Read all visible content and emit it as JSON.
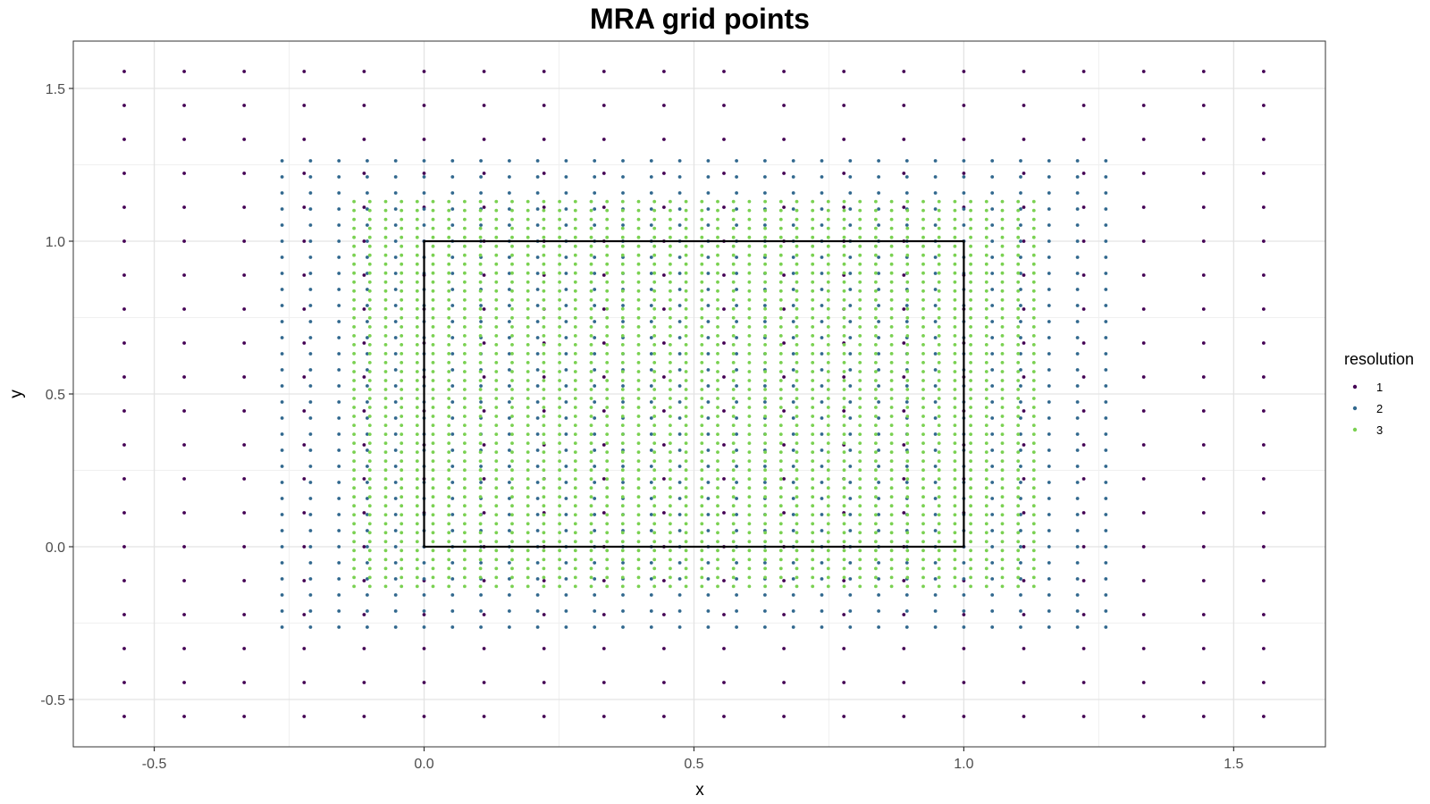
{
  "chart_data": {
    "type": "scatter",
    "title": "MRA grid points",
    "xlabel": "x",
    "ylabel": "y",
    "xlim": [
      -0.65,
      1.67
    ],
    "ylim": [
      -0.655,
      1.655
    ],
    "x_ticks": [
      -0.5,
      0.0,
      0.5,
      1.0,
      1.5
    ],
    "x_tick_labels": [
      "-0.5",
      "0.0",
      "0.5",
      "1.0",
      "1.5"
    ],
    "y_ticks": [
      -0.5,
      0.0,
      0.5,
      1.0,
      1.5
    ],
    "y_tick_labels": [
      "-0.5",
      "0.0",
      "0.5",
      "1.0",
      "1.5"
    ],
    "grid": true,
    "legend": {
      "title": "resolution",
      "placement": "right"
    },
    "domain_rectangle": {
      "x": [
        0,
        1
      ],
      "y": [
        0,
        1
      ],
      "color": "#000000"
    },
    "series": [
      {
        "name": "1",
        "color": "#440154",
        "x_range": [
          -0.5556,
          1.5556
        ],
        "y_range": [
          -0.5556,
          1.5556
        ],
        "count": [
          20,
          20
        ]
      },
      {
        "name": "2",
        "color": "#31688E",
        "x_range": [
          -0.2632,
          1.2632
        ],
        "y_range": [
          -0.2632,
          1.2632
        ],
        "count": [
          30,
          30
        ]
      },
      {
        "name": "3",
        "color": "#7AD151",
        "x_range": [
          -0.1299,
          1.1299
        ],
        "y_range": [
          -0.1299,
          1.1299
        ],
        "count": [
          44,
          44
        ]
      }
    ]
  }
}
